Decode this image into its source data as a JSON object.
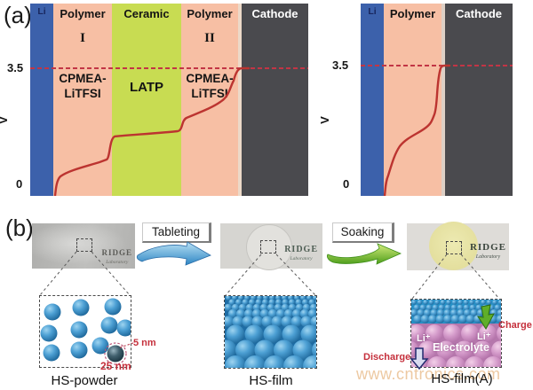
{
  "panel_a": {
    "label": "(a)",
    "left_cell": {
      "layers": [
        {
          "name": "Li"
        },
        {
          "name": "Polymer",
          "numeral": "I",
          "material_line1": "CPMEA-",
          "material_line2": "LiTFSI"
        },
        {
          "name": "Ceramic",
          "material": "LATP"
        },
        {
          "name": "Polymer",
          "numeral": "II",
          "material_line1": "CPMEA-",
          "material_line2": "LiTFSI"
        },
        {
          "name": "Cathode"
        }
      ],
      "axis": {
        "v_max": "3.5",
        "v_min": "0",
        "unit": "V"
      }
    },
    "right_cell": {
      "layers": [
        {
          "name": "Li"
        },
        {
          "name": "Polymer"
        },
        {
          "name": "Cathode"
        }
      ],
      "axis": {
        "v_max": "3.5",
        "v_min": "0",
        "unit": "V"
      }
    }
  },
  "panel_b": {
    "label": "(b)",
    "process_arrows": [
      {
        "label": "Tableting"
      },
      {
        "label": "Soaking"
      }
    ],
    "steps": [
      {
        "caption": "HS-powder",
        "logo_line1": "RIDGE",
        "logo_line2": "Laboratory",
        "annotation_shell": "5 nm",
        "annotation_diameter": "25 nm"
      },
      {
        "caption": "HS-film",
        "logo_line1": "RIDGE",
        "logo_line2": "Laboratory"
      },
      {
        "caption": "HS-film(A)",
        "logo_line1": "RIDGE",
        "logo_line2": "Laboratory",
        "label_li_left": "Li⁺",
        "label_li_right": "Li⁺",
        "label_electrolyte": "Electrolyte",
        "label_charge": "Charge",
        "label_discharge": "Discharge"
      }
    ]
  },
  "watermark": "www.cntronics.com",
  "colors": {
    "li_blue": "#3c61ab",
    "polymer_salmon": "#f7bfa4",
    "ceramic_green": "#c8dc52",
    "cathode_gray": "#4a4a4e",
    "voltage_curve_red": "#bc3430",
    "dashed_line_red": "#c23545",
    "sphere_blue": "#4da0d4",
    "electrolyte_pink": "#d49aca",
    "film_yellow": "#e9e5a6",
    "annotation_red": "#c5303c",
    "arrow_blue": "#2e86c4",
    "arrow_green": "#4e9e1c",
    "watermark_tan": "#edc9a2"
  }
}
